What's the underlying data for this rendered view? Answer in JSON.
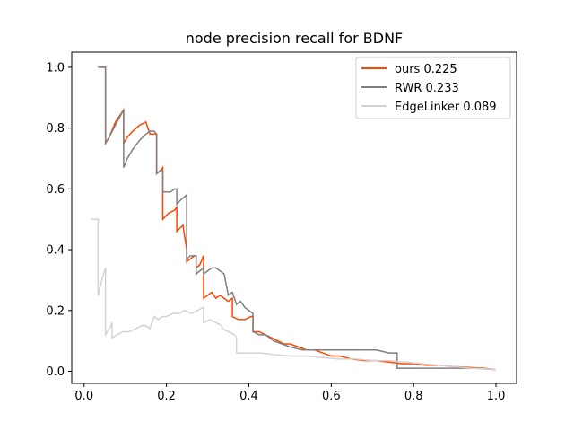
{
  "chart_data": {
    "type": "line",
    "title": "node precision recall for BDNF",
    "xlabel": "",
    "ylabel": "",
    "xlim": [
      -0.03,
      1.05
    ],
    "ylim": [
      -0.04,
      1.05
    ],
    "xticks": [
      0.0,
      0.2,
      0.4,
      0.6,
      0.8,
      1.0
    ],
    "xtick_labels": [
      "0.0",
      "0.2",
      "0.4",
      "0.6",
      "0.8",
      "1.0"
    ],
    "yticks": [
      0.0,
      0.2,
      0.4,
      0.6,
      0.8,
      1.0
    ],
    "ytick_labels": [
      "0.0",
      "0.2",
      "0.4",
      "0.6",
      "0.8",
      "1.0"
    ],
    "grid": false,
    "legend_position": "top-right",
    "series": [
      {
        "name": "ours 0.225",
        "color": "#ff4500",
        "x": [
          0.034,
          0.052,
          0.052,
          0.061,
          0.076,
          0.096,
          0.096,
          0.105,
          0.118,
          0.135,
          0.15,
          0.16,
          0.16,
          0.17,
          0.176,
          0.176,
          0.185,
          0.191,
          0.191,
          0.205,
          0.22,
          0.225,
          0.225,
          0.232,
          0.24,
          0.249,
          0.249,
          0.258,
          0.268,
          0.272,
          0.272,
          0.281,
          0.29,
          0.29,
          0.3,
          0.31,
          0.32,
          0.33,
          0.34,
          0.35,
          0.36,
          0.36,
          0.375,
          0.39,
          0.405,
          0.41,
          0.41,
          0.425,
          0.44,
          0.455,
          0.47,
          0.485,
          0.5,
          0.52,
          0.54,
          0.56,
          0.58,
          0.6,
          0.62,
          0.65,
          0.68,
          0.71,
          0.74,
          0.77,
          0.8,
          0.83,
          0.86,
          0.9,
          0.94,
          0.97,
          1.0
        ],
        "y": [
          1.0,
          1.0,
          0.75,
          0.77,
          0.82,
          0.86,
          0.75,
          0.77,
          0.79,
          0.81,
          0.82,
          0.78,
          0.78,
          0.78,
          0.78,
          0.65,
          0.66,
          0.67,
          0.5,
          0.52,
          0.53,
          0.54,
          0.46,
          0.47,
          0.48,
          0.4,
          0.36,
          0.37,
          0.38,
          0.38,
          0.34,
          0.35,
          0.38,
          0.24,
          0.25,
          0.26,
          0.24,
          0.25,
          0.24,
          0.23,
          0.24,
          0.18,
          0.17,
          0.17,
          0.18,
          0.18,
          0.13,
          0.13,
          0.12,
          0.11,
          0.1,
          0.09,
          0.09,
          0.08,
          0.07,
          0.07,
          0.06,
          0.05,
          0.05,
          0.04,
          0.035,
          0.035,
          0.03,
          0.025,
          0.025,
          0.02,
          0.02,
          0.015,
          0.012,
          0.01,
          0.005
        ]
      },
      {
        "name": "RWR 0.233",
        "color": "#808080",
        "x": [
          0.034,
          0.052,
          0.052,
          0.061,
          0.076,
          0.096,
          0.096,
          0.105,
          0.118,
          0.135,
          0.15,
          0.16,
          0.17,
          0.176,
          0.176,
          0.185,
          0.191,
          0.191,
          0.2,
          0.21,
          0.22,
          0.225,
          0.225,
          0.232,
          0.24,
          0.249,
          0.249,
          0.258,
          0.268,
          0.272,
          0.272,
          0.281,
          0.29,
          0.29,
          0.3,
          0.31,
          0.32,
          0.33,
          0.34,
          0.35,
          0.36,
          0.37,
          0.38,
          0.39,
          0.4,
          0.41,
          0.41,
          0.425,
          0.44,
          0.46,
          0.48,
          0.5,
          0.53,
          0.56,
          0.59,
          0.62,
          0.65,
          0.68,
          0.71,
          0.74,
          0.75,
          0.76,
          0.76,
          0.8,
          0.85,
          0.9,
          0.95,
          1.0
        ],
        "y": [
          1.0,
          1.0,
          0.75,
          0.77,
          0.81,
          0.86,
          0.67,
          0.7,
          0.73,
          0.76,
          0.78,
          0.79,
          0.79,
          0.78,
          0.65,
          0.66,
          0.66,
          0.59,
          0.59,
          0.59,
          0.6,
          0.6,
          0.55,
          0.56,
          0.57,
          0.58,
          0.37,
          0.38,
          0.38,
          0.38,
          0.32,
          0.33,
          0.34,
          0.32,
          0.33,
          0.34,
          0.34,
          0.33,
          0.32,
          0.25,
          0.26,
          0.22,
          0.23,
          0.21,
          0.2,
          0.19,
          0.13,
          0.12,
          0.12,
          0.1,
          0.09,
          0.08,
          0.07,
          0.07,
          0.07,
          0.07,
          0.07,
          0.07,
          0.07,
          0.06,
          0.06,
          0.06,
          0.01,
          0.01,
          0.01,
          0.01,
          0.01,
          0.005
        ]
      },
      {
        "name": "EdgeLinker 0.089",
        "color": "#d3d3d3",
        "x": [
          0.017,
          0.034,
          0.034,
          0.043,
          0.052,
          0.052,
          0.061,
          0.068,
          0.068,
          0.08,
          0.095,
          0.11,
          0.125,
          0.14,
          0.15,
          0.16,
          0.17,
          0.18,
          0.19,
          0.2,
          0.215,
          0.23,
          0.245,
          0.26,
          0.275,
          0.29,
          0.29,
          0.305,
          0.32,
          0.335,
          0.335,
          0.35,
          0.365,
          0.37,
          0.37,
          0.4,
          0.43,
          0.46,
          0.5,
          0.54,
          0.58,
          0.62,
          0.66,
          0.7,
          0.74,
          0.78,
          0.82,
          0.86,
          0.9,
          0.94,
          0.97,
          1.0
        ],
        "y": [
          0.5,
          0.5,
          0.25,
          0.3,
          0.34,
          0.12,
          0.14,
          0.16,
          0.11,
          0.12,
          0.13,
          0.13,
          0.14,
          0.15,
          0.15,
          0.14,
          0.18,
          0.17,
          0.18,
          0.18,
          0.19,
          0.19,
          0.2,
          0.19,
          0.2,
          0.21,
          0.16,
          0.17,
          0.16,
          0.15,
          0.14,
          0.13,
          0.12,
          0.11,
          0.06,
          0.06,
          0.06,
          0.055,
          0.05,
          0.05,
          0.045,
          0.04,
          0.04,
          0.035,
          0.035,
          0.03,
          0.025,
          0.02,
          0.015,
          0.01,
          0.008,
          0.005
        ]
      }
    ]
  }
}
